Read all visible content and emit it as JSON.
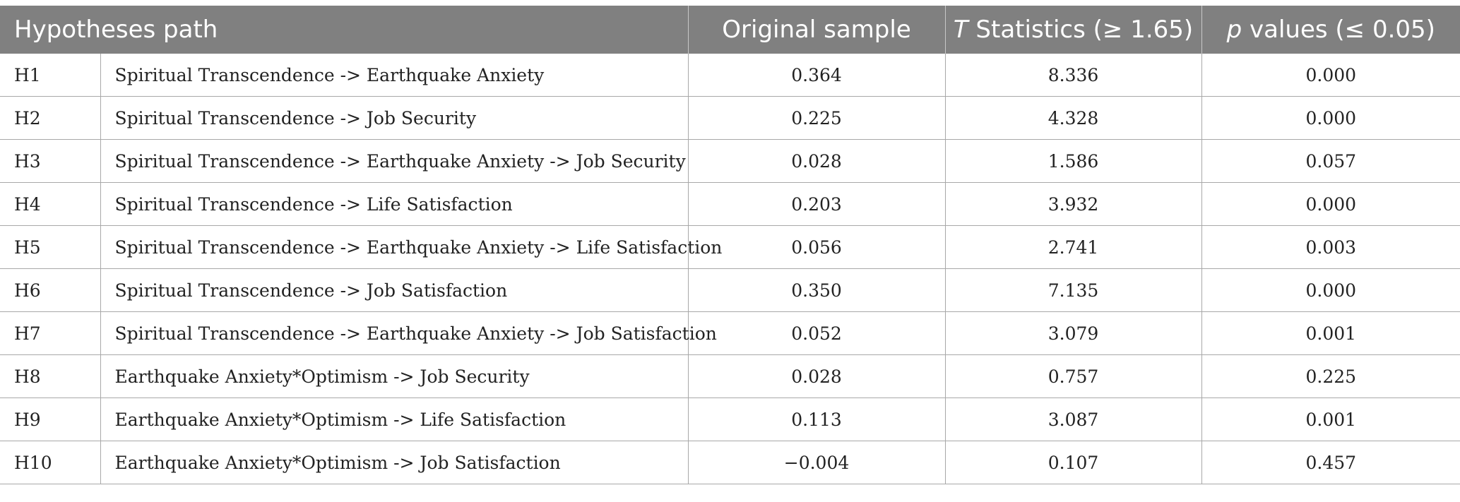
{
  "table": {
    "headers": {
      "path": "Hypotheses path",
      "original": "Original sample",
      "t_italic": "T",
      "t_rest": " Statistics (≥ 1.65)",
      "p_italic": "p",
      "p_rest": " values (≤ 0.05)"
    },
    "rows": [
      {
        "id": "H1",
        "path": "Spiritual Transcendence -> Earthquake Anxiety",
        "original": "0.364",
        "t": "8.336",
        "p": "0.000"
      },
      {
        "id": "H2",
        "path": "Spiritual Transcendence -> Job Security",
        "original": "0.225",
        "t": "4.328",
        "p": "0.000"
      },
      {
        "id": "H3",
        "path": "Spiritual Transcendence -> Earthquake Anxiety -> Job Security",
        "original": "0.028",
        "t": "1.586",
        "p": "0.057"
      },
      {
        "id": "H4",
        "path": "Spiritual Transcendence -> Life Satisfaction",
        "original": "0.203",
        "t": "3.932",
        "p": "0.000"
      },
      {
        "id": "H5",
        "path": "Spiritual Transcendence -> Earthquake Anxiety -> Life Satisfaction",
        "original": "0.056",
        "t": "2.741",
        "p": "0.003"
      },
      {
        "id": "H6",
        "path": "Spiritual Transcendence -> Job Satisfaction",
        "original": "0.350",
        "t": "7.135",
        "p": "0.000"
      },
      {
        "id": "H7",
        "path": "Spiritual Transcendence -> Earthquake Anxiety -> Job Satisfaction",
        "original": "0.052",
        "t": "3.079",
        "p": "0.001"
      },
      {
        "id": "H8",
        "path": "Earthquake Anxiety*Optimism -> Job Security",
        "original": "0.028",
        "t": "0.757",
        "p": "0.225"
      },
      {
        "id": "H9",
        "path": "Earthquake Anxiety*Optimism -> Life Satisfaction",
        "original": "0.113",
        "t": "3.087",
        "p": "0.001"
      },
      {
        "id": "H10",
        "path": "Earthquake Anxiety*Optimism -> Job Satisfaction",
        "original": "−0.004",
        "t": "0.107",
        "p": "0.457"
      }
    ]
  }
}
